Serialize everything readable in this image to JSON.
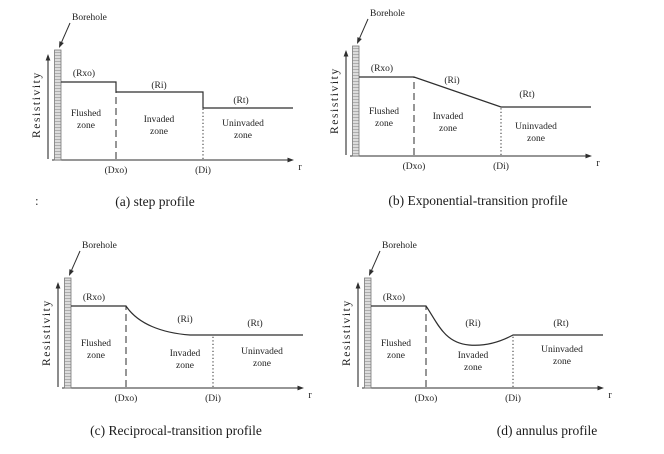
{
  "figure": {
    "stray_colon": ":",
    "line_color": "#2e2e2e",
    "borehole_fill": "#dcdcdc",
    "borehole_edge": "#777777",
    "panels": [
      {
        "key": "a",
        "profile": "step",
        "caption": "(a) step profile",
        "labels": {
          "borehole": "Borehole",
          "y_axis": "Resistivity",
          "x_axis": "r",
          "rxo": "(Rxo)",
          "ri": "(Ri)",
          "rt": "(Rt)",
          "dxo": "(Dxo)",
          "di": "(Di)",
          "zones": [
            "Flushed zone",
            "Invaded zone",
            "Uninvaded zone"
          ]
        }
      },
      {
        "key": "b",
        "profile": "exponential",
        "caption": "(b) Exponential-transition profile",
        "labels": {
          "borehole": "Borehole",
          "y_axis": "Resistivity",
          "x_axis": "r",
          "rxo": "(Rxo)",
          "ri": "(Ri)",
          "rt": "(Rt)",
          "dxo": "(Dxo)",
          "di": "(Di)",
          "zones": [
            "Flushed zone",
            "Invaded zone",
            "Uninvaded zone"
          ]
        }
      },
      {
        "key": "c",
        "profile": "reciprocal",
        "caption": "(c) Reciprocal-transition profile",
        "labels": {
          "borehole": "Borehole",
          "y_axis": "Resistivity",
          "x_axis": "r",
          "rxo": "(Rxo)",
          "ri": "(Ri)",
          "rt": "(Rt)",
          "dxo": "(Dxo)",
          "di": "(Di)",
          "zones": [
            "Flushed zone",
            "Invaded zone",
            "Uninvaded zone"
          ]
        }
      },
      {
        "key": "d",
        "profile": "annulus",
        "caption": "(d) annulus profile",
        "labels": {
          "borehole": "Borehole",
          "y_axis": "Resistivity",
          "x_axis": "r",
          "rxo": "(Rxo)",
          "ri": "(Ri)",
          "rt": "(Rt)",
          "dxo": "(Dxo)",
          "di": "(Di)",
          "zones": [
            "Flushed zone",
            "Invaded zone",
            "Uninvaded zone"
          ]
        }
      }
    ]
  }
}
